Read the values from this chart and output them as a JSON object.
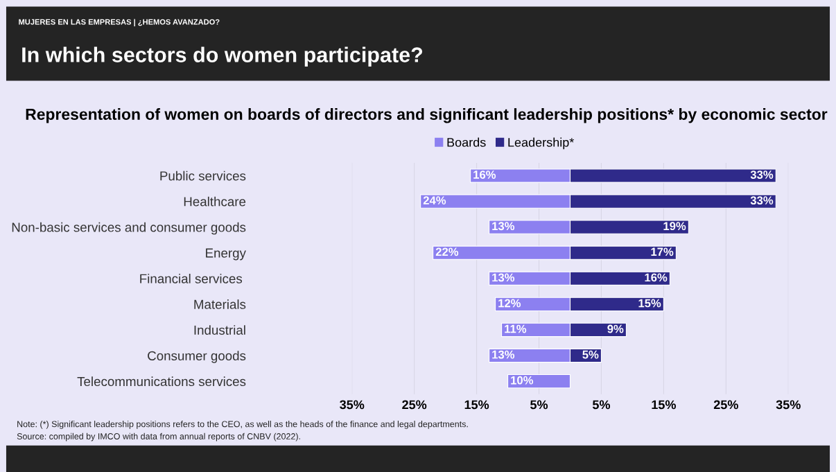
{
  "chart_data": {
    "type": "bar",
    "orientation": "horizontal",
    "title": "In which sectors do women participate?",
    "subtitle": "Representation of women on boards of directors and significant leadership positions* by economic sector",
    "categories": [
      "Public services",
      "Healthcare",
      "Non-basic services and consumer goods",
      "Energy",
      "Financial services ",
      "Materials",
      "Industrial",
      "Consumer goods",
      "Telecommunications services"
    ],
    "series": [
      {
        "name": "Boards",
        "color": "#8c80f0",
        "values": [
          16,
          24,
          13,
          22,
          13,
          12,
          11,
          13,
          10
        ],
        "base": [
          -16,
          -24,
          -13,
          -22,
          -13,
          -12,
          -11,
          -13,
          -10
        ],
        "value_labels": [
          "16%",
          "24%",
          "13%",
          "22%",
          "13%",
          "12%",
          "11%",
          "13%",
          "10%"
        ]
      },
      {
        "name": "Leadership*",
        "color": "#2f2a8a",
        "values": [
          33,
          33,
          19,
          17,
          16,
          15,
          9,
          5,
          null
        ],
        "value_labels": [
          "33%",
          "33%",
          "19%",
          "17%",
          "16%",
          "15%",
          "9%",
          "5%",
          null
        ]
      }
    ],
    "xlim": [
      -35,
      35
    ],
    "xticks": [
      {
        "value": -35,
        "label": "35%"
      },
      {
        "value": -25,
        "label": "25%"
      },
      {
        "value": -15,
        "label": "15%"
      },
      {
        "value": -5,
        "label": "5%"
      },
      {
        "value": 5,
        "label": "5%"
      },
      {
        "value": 15,
        "label": "15%"
      },
      {
        "value": 25,
        "label": "25%"
      },
      {
        "value": 35,
        "label": "35%"
      }
    ],
    "grid": "x",
    "legend": "top",
    "annotations": [
      "MUJERES EN LAS EMPRESAS | ¿HEMOS AVANZADO?",
      "Note: (*) Significant leadership positions refers to the CEO, as well as the heads of the finance and legal departments.",
      "Source: compiled by IMCO with data from annual reports of CNBV (2022)."
    ]
  }
}
